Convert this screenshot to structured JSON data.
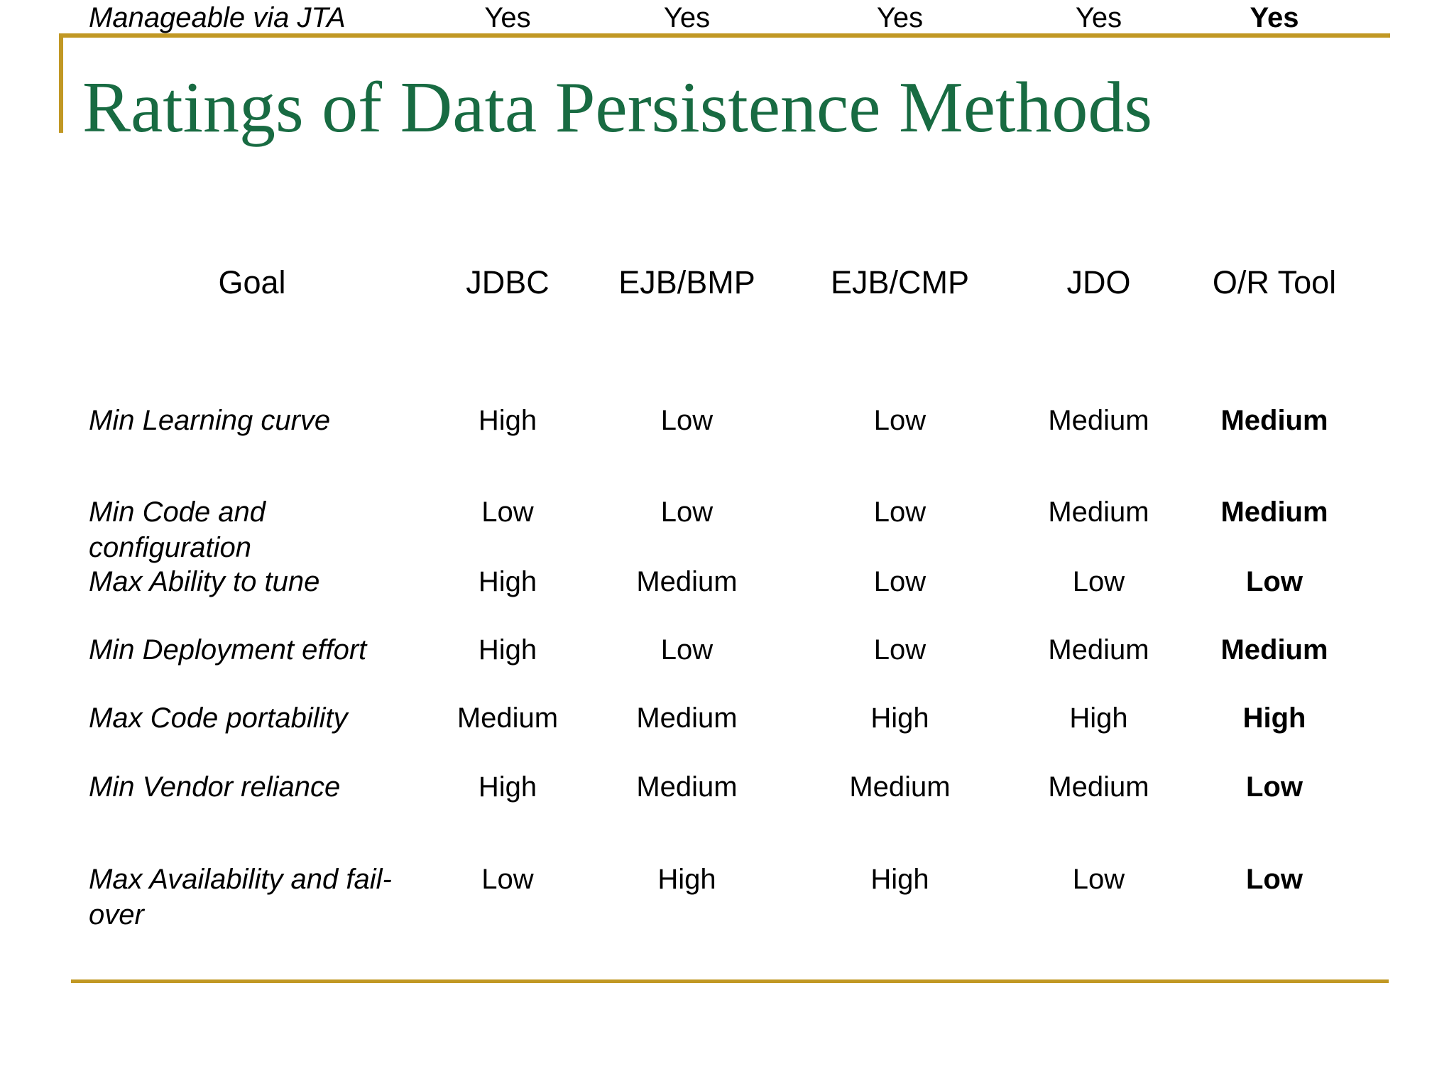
{
  "slide": {
    "title": "Ratings of Data Persistence Methods"
  },
  "table": {
    "columns": [
      "Goal",
      "JDBC",
      "EJB/BMP",
      "EJB/CMP",
      "JDO",
      "O/R Tool"
    ],
    "rows": [
      {
        "goal": "Min Learning curve",
        "values": [
          "High",
          "Low",
          "Low",
          "Medium",
          "Medium"
        ]
      },
      {
        "goal": "Min Code and configuration",
        "values": [
          "Low",
          "Low",
          "Low",
          "Medium",
          "Medium"
        ]
      },
      {
        "goal": "Max Ability to tune",
        "values": [
          "High",
          "Medium",
          "Low",
          "Low",
          "Low"
        ]
      },
      {
        "goal": "Min Deployment effort",
        "values": [
          "High",
          "Low",
          "Low",
          "Medium",
          "Medium"
        ]
      },
      {
        "goal": "Max Code portability",
        "values": [
          "Medium",
          "Medium",
          "High",
          "High",
          "High"
        ]
      },
      {
        "goal": "Min Vendor reliance",
        "values": [
          "High",
          "Medium",
          "Medium",
          "Medium",
          "Low"
        ]
      },
      {
        "goal": "Max Availability and fail-over",
        "values": [
          "Low",
          "High",
          "High",
          "Low",
          "Low"
        ]
      },
      {
        "goal": "Manageable via JTA",
        "values": [
          "Yes",
          "Yes",
          "Yes",
          "Yes",
          "Yes"
        ]
      }
    ]
  },
  "colors": {
    "title_green": "#186B42",
    "gold": "#C19824",
    "text": "#000000"
  }
}
